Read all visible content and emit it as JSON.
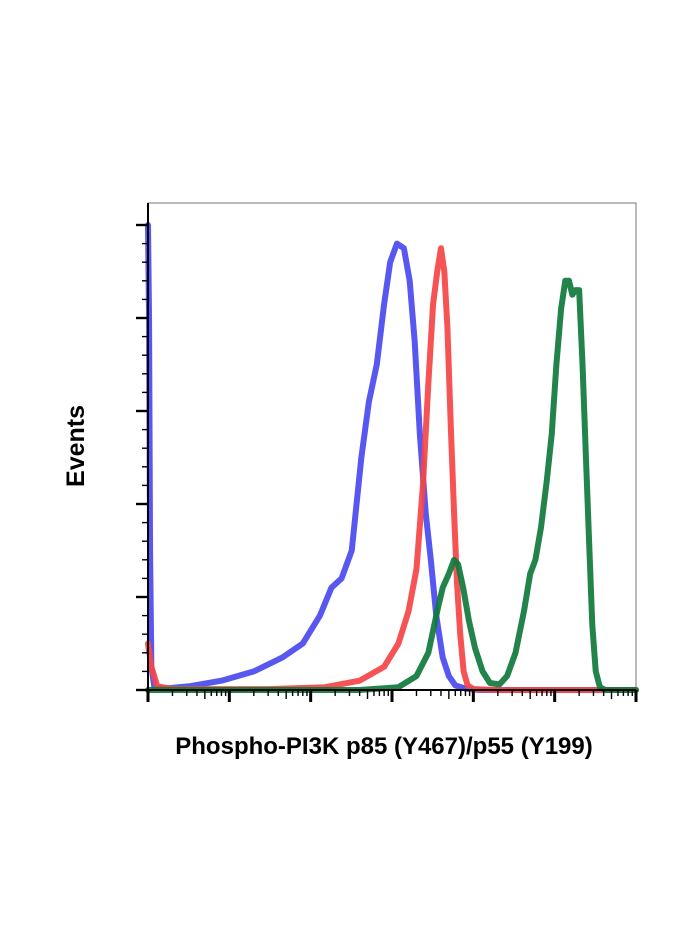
{
  "chart_data": {
    "type": "line",
    "xlabel": "Phospho-PI3K p85 (Y467)/p55 (Y199)",
    "ylabel": "Events",
    "x_scale": "log",
    "xlim": [
      1,
      1000000
    ],
    "ylim": [
      0,
      100
    ],
    "x_major_ticks": [
      1,
      10,
      100,
      1000,
      10000,
      100000,
      1000000
    ],
    "y_major_ticks": [
      0,
      20,
      40,
      60,
      80,
      100
    ],
    "grid": false,
    "legend": "none",
    "series": [
      {
        "color": "#4a4af0",
        "points": [
          [
            1.0,
            100
          ],
          [
            1.03,
            80
          ],
          [
            1.06,
            30
          ],
          [
            1.1,
            5
          ],
          [
            1.2,
            0.5
          ],
          [
            1.6,
            0.3
          ],
          [
            3.2,
            0.8
          ],
          [
            8,
            2
          ],
          [
            20,
            4
          ],
          [
            45,
            7
          ],
          [
            80,
            10
          ],
          [
            130,
            16
          ],
          [
            180,
            22
          ],
          [
            240,
            24
          ],
          [
            320,
            30
          ],
          [
            420,
            50
          ],
          [
            520,
            62
          ],
          [
            650,
            70
          ],
          [
            800,
            83
          ],
          [
            950,
            92
          ],
          [
            1150,
            96
          ],
          [
            1400,
            95
          ],
          [
            1650,
            88
          ],
          [
            1900,
            75
          ],
          [
            2200,
            55
          ],
          [
            2600,
            38
          ],
          [
            3000,
            28
          ],
          [
            3500,
            16
          ],
          [
            4200,
            7
          ],
          [
            5000,
            3
          ],
          [
            6000,
            1
          ],
          [
            8000,
            0.3
          ],
          [
            12000,
            0
          ],
          [
            1000000,
            0
          ]
        ]
      },
      {
        "color": "#f54545",
        "points": [
          [
            1.0,
            10
          ],
          [
            1.1,
            5
          ],
          [
            1.3,
            0.8
          ],
          [
            2,
            0.2
          ],
          [
            30,
            0.2
          ],
          [
            150,
            0.6
          ],
          [
            400,
            2
          ],
          [
            800,
            5
          ],
          [
            1200,
            10
          ],
          [
            1600,
            17
          ],
          [
            2000,
            26
          ],
          [
            2400,
            44
          ],
          [
            2800,
            66
          ],
          [
            3200,
            83
          ],
          [
            3600,
            90
          ],
          [
            4000,
            95
          ],
          [
            4400,
            90
          ],
          [
            4800,
            78
          ],
          [
            5300,
            56
          ],
          [
            5800,
            38
          ],
          [
            6300,
            23
          ],
          [
            6900,
            12
          ],
          [
            7600,
            4
          ],
          [
            8500,
            1
          ],
          [
            10000,
            0.2
          ],
          [
            20000,
            0
          ],
          [
            1000000,
            0
          ]
        ]
      },
      {
        "color": "#0f7a3c",
        "points": [
          [
            1,
            0
          ],
          [
            400,
            0
          ],
          [
            1200,
            0.6
          ],
          [
            2000,
            3
          ],
          [
            2800,
            8
          ],
          [
            3600,
            17
          ],
          [
            4200,
            22
          ],
          [
            5000,
            25
          ],
          [
            5800,
            28
          ],
          [
            6500,
            27
          ],
          [
            7500,
            22
          ],
          [
            8800,
            15
          ],
          [
            10500,
            9
          ],
          [
            13000,
            4
          ],
          [
            16000,
            1.5
          ],
          [
            21000,
            1.2
          ],
          [
            26000,
            3
          ],
          [
            33000,
            8
          ],
          [
            42000,
            17
          ],
          [
            50000,
            25
          ],
          [
            58000,
            28
          ],
          [
            68000,
            35
          ],
          [
            80000,
            45
          ],
          [
            92000,
            55
          ],
          [
            105000,
            70
          ],
          [
            120000,
            82
          ],
          [
            135000,
            88
          ],
          [
            150000,
            88
          ],
          [
            165000,
            85
          ],
          [
            180000,
            86
          ],
          [
            200000,
            86
          ],
          [
            220000,
            70
          ],
          [
            240000,
            52
          ],
          [
            265000,
            32
          ],
          [
            290000,
            14
          ],
          [
            320000,
            4
          ],
          [
            360000,
            0.6
          ],
          [
            420000,
            0
          ],
          [
            1000000,
            0
          ]
        ]
      }
    ]
  }
}
